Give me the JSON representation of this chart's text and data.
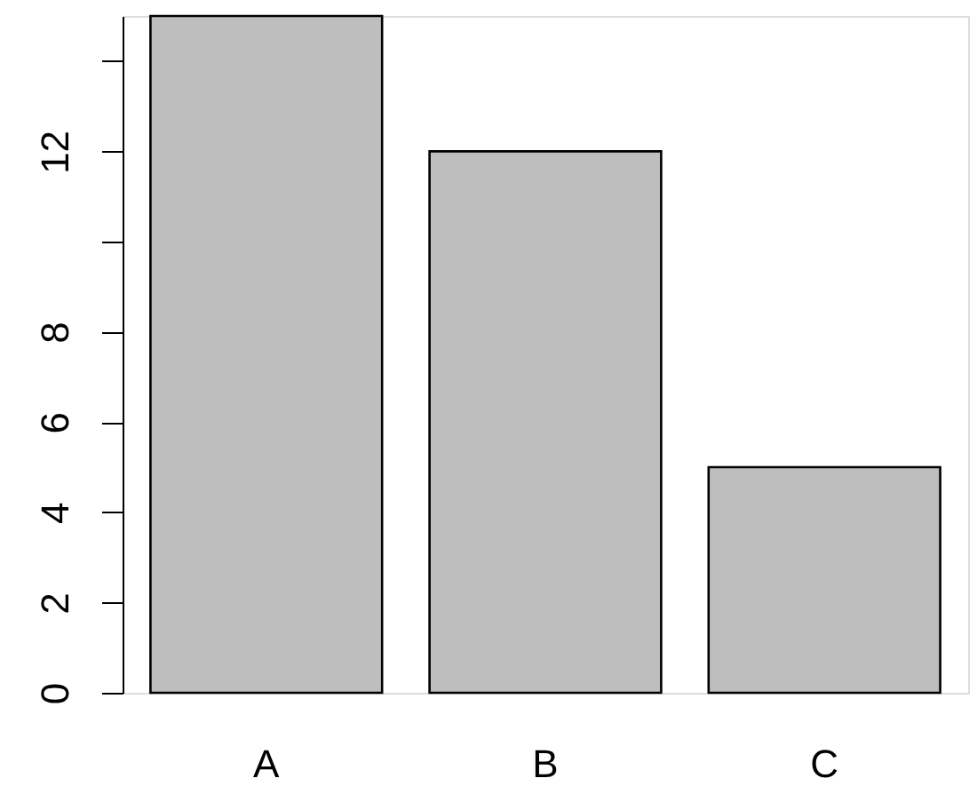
{
  "chart_data": {
    "type": "bar",
    "categories": [
      "A",
      "B",
      "C"
    ],
    "values": [
      15,
      12,
      5
    ],
    "color": "#bebebe",
    "ylim": [
      0,
      15
    ],
    "yticks": [
      0,
      2,
      4,
      6,
      8,
      {
        "value": 10,
        "label": null
      },
      12,
      {
        "value": 14,
        "label": null
      }
    ],
    "grid": false
  }
}
